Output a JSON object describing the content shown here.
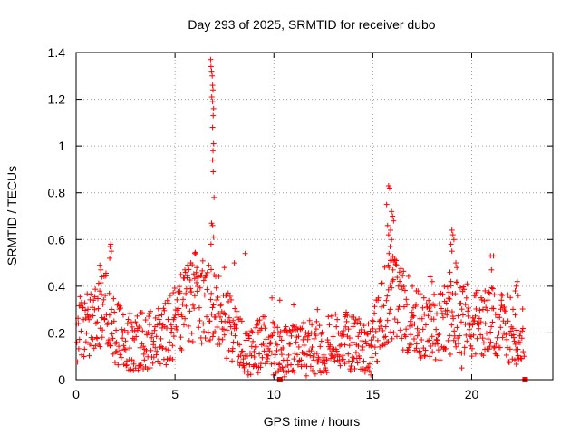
{
  "chart_data": {
    "type": "scatter",
    "title": "Day 293 of 2025, SRMTID for receiver dubo",
    "xlabel": "GPS time / hours",
    "ylabel": "SRMTID / TECUs",
    "xlim": [
      0,
      24.1
    ],
    "ylim": [
      0,
      1.4
    ],
    "grid": true,
    "xticks": [
      "0",
      "5",
      "10",
      "15",
      "20"
    ],
    "xtick_values": [
      0,
      5,
      10,
      15,
      20
    ],
    "yticks": [
      "0",
      "0.2",
      "0.4",
      "0.6",
      "0.8",
      "1",
      "1.2",
      "1.4"
    ],
    "ytick_values": [
      0,
      0.2,
      0.4,
      0.6,
      0.8,
      1.0,
      1.2,
      1.4
    ],
    "marker": "+",
    "color": "#ff0000",
    "series": [
      {
        "name": "SRMTID",
        "baseline": [
          [
            0.0,
            0.22
          ],
          [
            0.5,
            0.24
          ],
          [
            1.0,
            0.28
          ],
          [
            1.5,
            0.3
          ],
          [
            2.0,
            0.2
          ],
          [
            2.5,
            0.16
          ],
          [
            3.0,
            0.16
          ],
          [
            3.5,
            0.17
          ],
          [
            4.0,
            0.19
          ],
          [
            4.5,
            0.2
          ],
          [
            5.0,
            0.24
          ],
          [
            5.5,
            0.3
          ],
          [
            6.0,
            0.36
          ],
          [
            6.5,
            0.34
          ],
          [
            7.0,
            0.3
          ],
          [
            7.5,
            0.26
          ],
          [
            8.0,
            0.2
          ],
          [
            8.5,
            0.14
          ],
          [
            9.0,
            0.13
          ],
          [
            9.5,
            0.16
          ],
          [
            10.0,
            0.13
          ],
          [
            10.5,
            0.12
          ],
          [
            11.0,
            0.12
          ],
          [
            11.5,
            0.13
          ],
          [
            12.0,
            0.14
          ],
          [
            12.5,
            0.15
          ],
          [
            13.0,
            0.16
          ],
          [
            13.5,
            0.17
          ],
          [
            14.0,
            0.16
          ],
          [
            14.5,
            0.14
          ],
          [
            15.0,
            0.16
          ],
          [
            15.5,
            0.3
          ],
          [
            16.0,
            0.35
          ],
          [
            16.5,
            0.3
          ],
          [
            17.0,
            0.27
          ],
          [
            17.5,
            0.22
          ],
          [
            18.0,
            0.22
          ],
          [
            18.5,
            0.24
          ],
          [
            19.0,
            0.28
          ],
          [
            19.5,
            0.28
          ],
          [
            20.0,
            0.25
          ],
          [
            20.5,
            0.24
          ],
          [
            21.0,
            0.24
          ],
          [
            21.5,
            0.22
          ],
          [
            22.0,
            0.22
          ],
          [
            22.6,
            0.18
          ]
        ],
        "spikes": [
          [
            6.8,
            1.37
          ],
          [
            6.82,
            1.34
          ],
          [
            6.85,
            1.32
          ],
          [
            6.88,
            1.3
          ],
          [
            6.9,
            1.26
          ],
          [
            6.92,
            1.24
          ],
          [
            6.86,
            1.21
          ],
          [
            6.9,
            1.19
          ],
          [
            6.95,
            1.16
          ],
          [
            6.93,
            1.13
          ],
          [
            6.9,
            1.08
          ],
          [
            6.95,
            1.01
          ],
          [
            6.92,
            0.98
          ],
          [
            6.9,
            0.94
          ],
          [
            6.93,
            0.89
          ],
          [
            6.97,
            0.78
          ],
          [
            6.85,
            0.67
          ],
          [
            6.9,
            0.66
          ],
          [
            6.95,
            0.61
          ],
          [
            6.82,
            0.58
          ],
          [
            15.8,
            0.83
          ],
          [
            15.85,
            0.82
          ],
          [
            15.7,
            0.75
          ],
          [
            15.95,
            0.72
          ],
          [
            16.0,
            0.7
          ],
          [
            16.05,
            0.68
          ],
          [
            15.75,
            0.66
          ],
          [
            15.9,
            0.64
          ],
          [
            15.8,
            0.62
          ],
          [
            15.95,
            0.6
          ],
          [
            15.88,
            0.57
          ],
          [
            15.82,
            0.54
          ],
          [
            15.9,
            0.51
          ],
          [
            15.78,
            0.49
          ],
          [
            16.02,
            0.47
          ],
          [
            1.75,
            0.58
          ],
          [
            1.72,
            0.57
          ],
          [
            1.78,
            0.55
          ],
          [
            1.7,
            0.52
          ],
          [
            1.2,
            0.49
          ],
          [
            1.25,
            0.47
          ],
          [
            1.3,
            0.44
          ],
          [
            6.0,
            0.54
          ],
          [
            5.8,
            0.5
          ],
          [
            6.1,
            0.48
          ],
          [
            5.5,
            0.47
          ],
          [
            5.3,
            0.45
          ],
          [
            8.55,
            0.54
          ],
          [
            8.0,
            0.5
          ],
          [
            7.5,
            0.48
          ],
          [
            19.0,
            0.64
          ],
          [
            19.05,
            0.62
          ],
          [
            19.1,
            0.6
          ],
          [
            18.95,
            0.58
          ],
          [
            19.0,
            0.55
          ],
          [
            19.2,
            0.5
          ],
          [
            19.25,
            0.48
          ],
          [
            18.9,
            0.46
          ],
          [
            20.95,
            0.53
          ],
          [
            21.1,
            0.53
          ],
          [
            21.0,
            0.47
          ],
          [
            22.3,
            0.42
          ],
          [
            22.25,
            0.4
          ],
          [
            22.2,
            0.38
          ],
          [
            22.35,
            0.36
          ],
          [
            9.9,
            0.35
          ],
          [
            10.3,
            0.34
          ],
          [
            11.0,
            0.32
          ],
          [
            12.2,
            0.3
          ],
          [
            13.6,
            0.27
          ],
          [
            14.0,
            0.24
          ],
          [
            14.3,
            0.26
          ],
          [
            14.6,
            0.2
          ],
          [
            17.0,
            0.4
          ],
          [
            17.2,
            0.38
          ],
          [
            18.0,
            0.42
          ],
          [
            17.9,
            0.44
          ],
          [
            20.2,
            0.36
          ],
          [
            21.5,
            0.34
          ],
          [
            22.6,
            0.12
          ],
          [
            22.65,
            0.1
          ],
          [
            2.9,
            0.04
          ],
          [
            3.2,
            0.06
          ],
          [
            8.7,
            0.02
          ],
          [
            9.2,
            0.03
          ],
          [
            14.9,
            0.02
          ],
          [
            19.5,
            0.05
          ]
        ]
      }
    ],
    "special_points": [
      [
        10.3,
        0.0
      ],
      [
        22.7,
        0.0
      ]
    ]
  }
}
